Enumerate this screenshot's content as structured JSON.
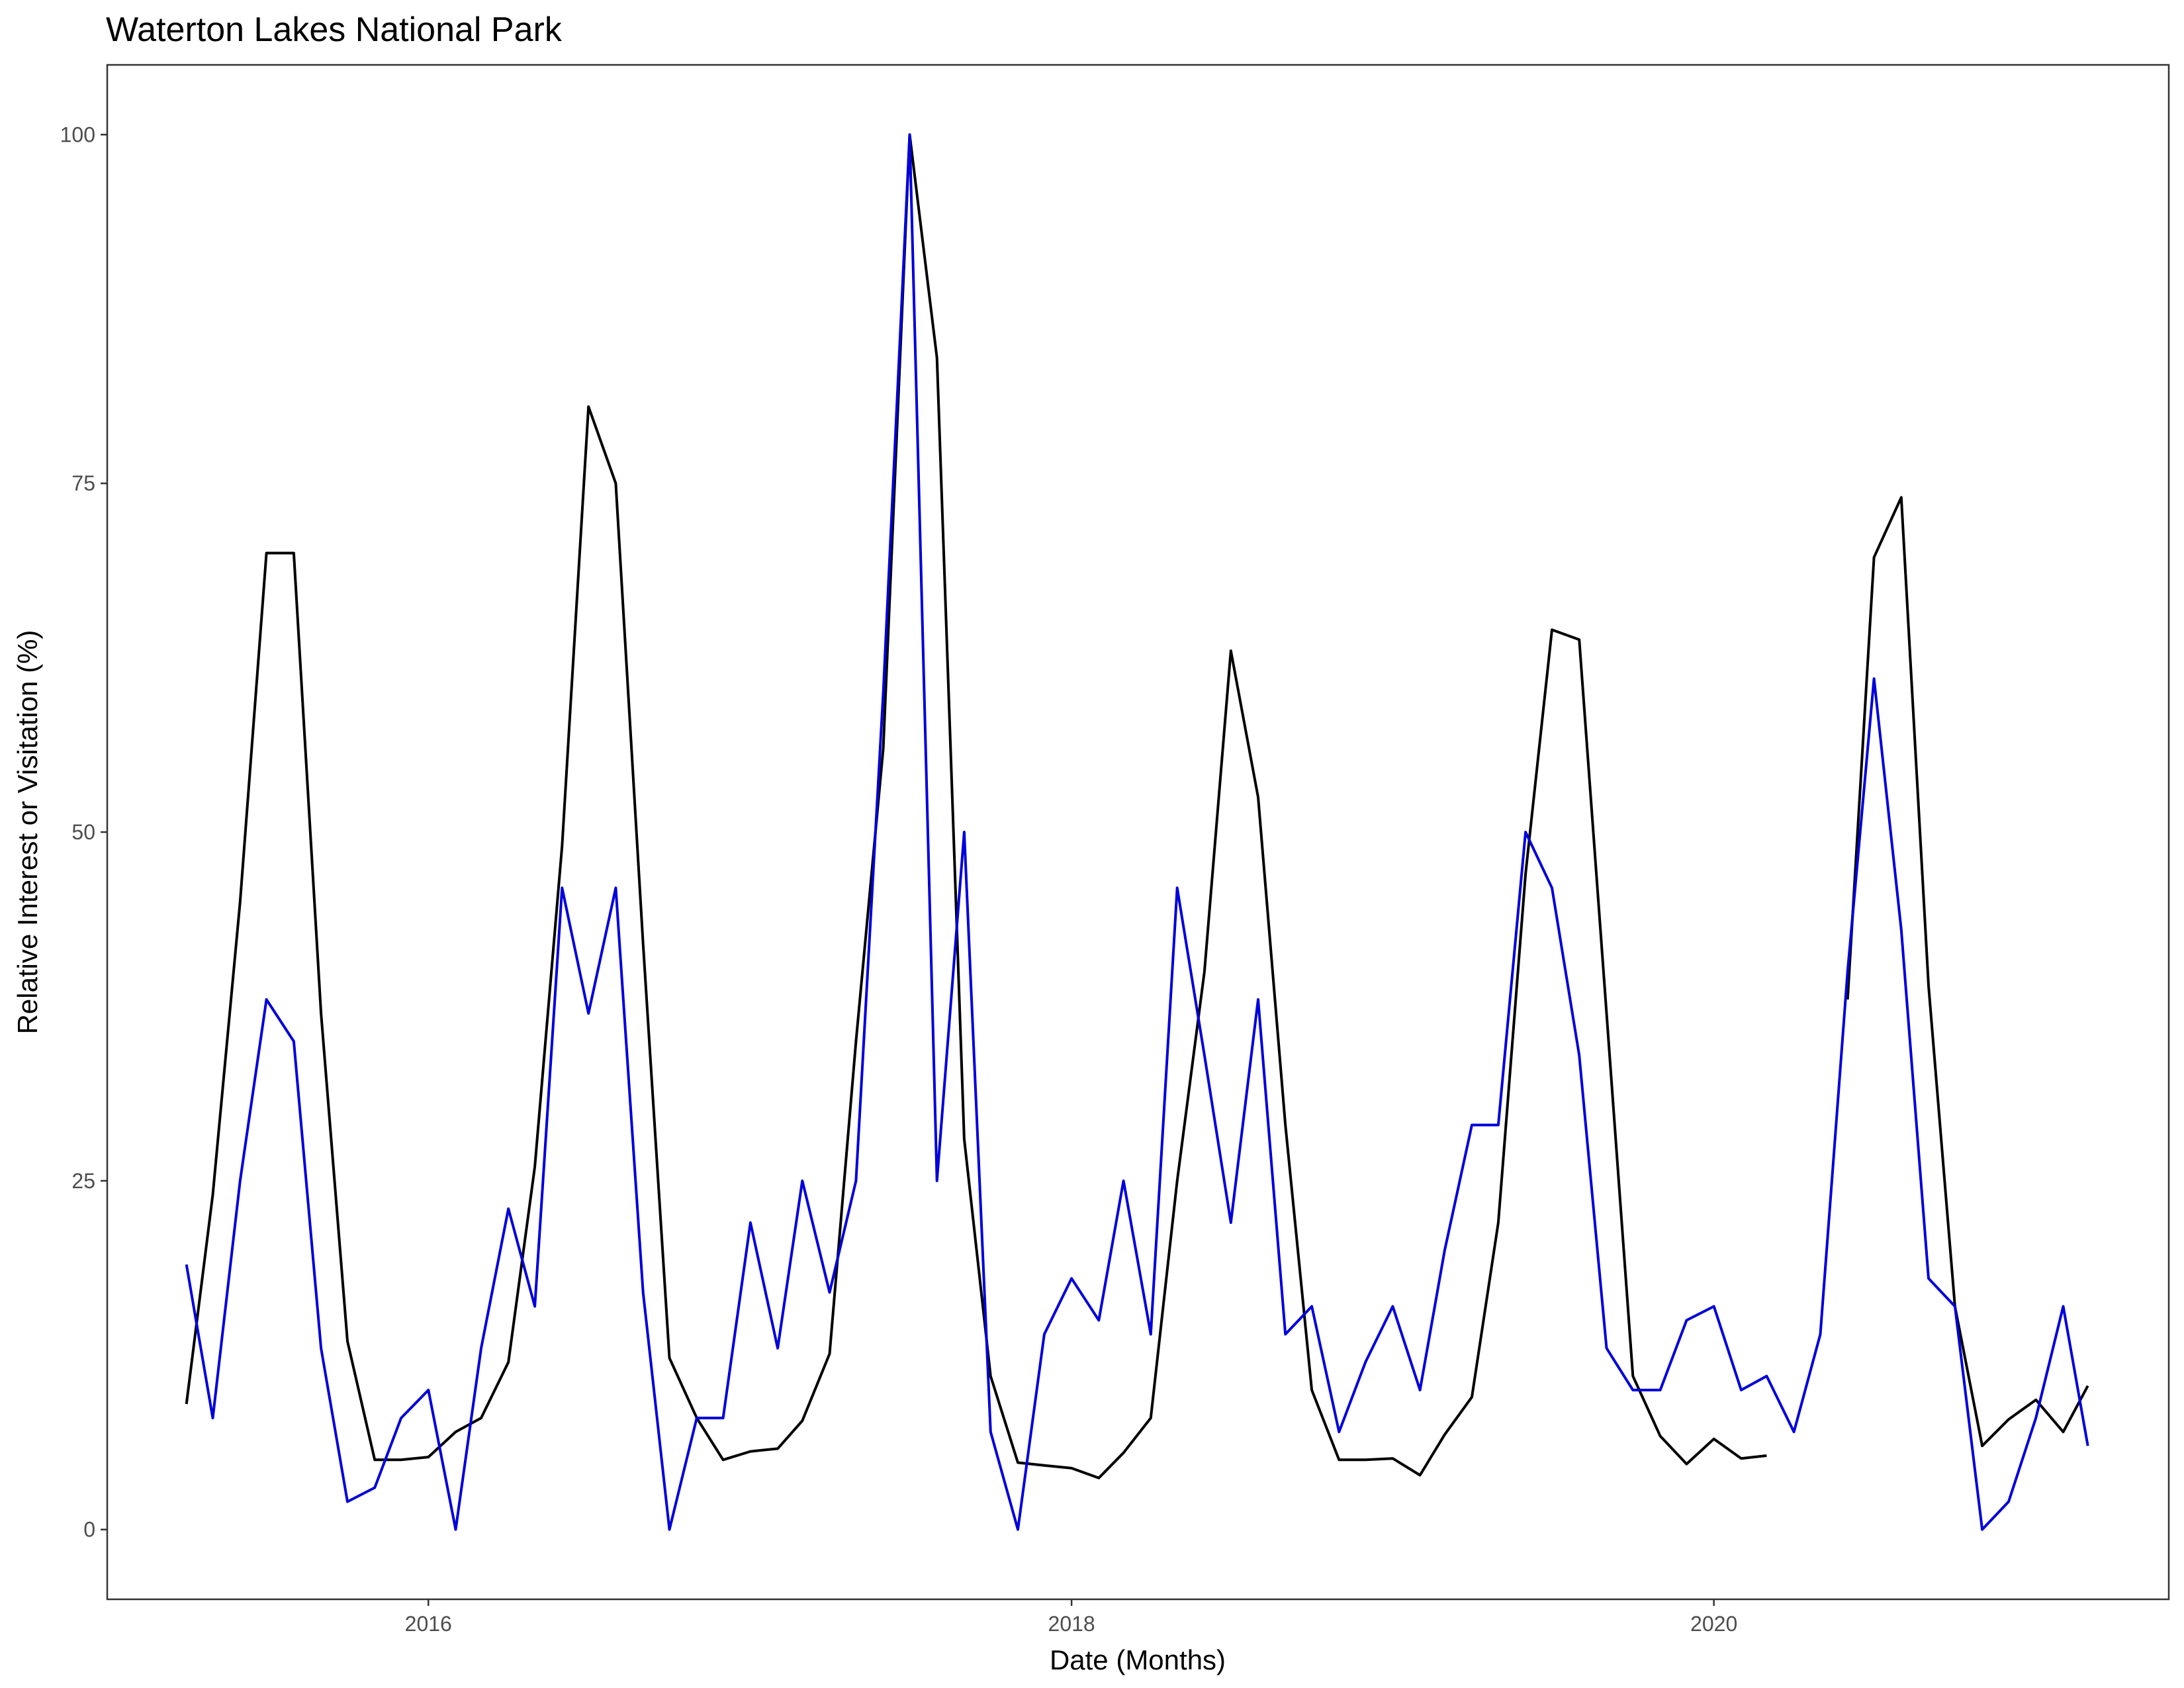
{
  "chart_data": {
    "type": "line",
    "title": "Waterton Lakes National Park",
    "xlabel": "Date (Months)",
    "ylabel": "Relative Interest or Visitation (%)",
    "xlim": [
      "2015-01-01",
      "2021-06-01"
    ],
    "ylim": [
      -5,
      105
    ],
    "x_ticks": [
      {
        "date": "2016-01-01",
        "label": "2016"
      },
      {
        "date": "2018-01-01",
        "label": "2018"
      },
      {
        "date": "2020-01-01",
        "label": "2020"
      }
    ],
    "y_ticks": [
      0,
      25,
      50,
      75,
      100
    ],
    "grid": false,
    "legend": "none",
    "series": [
      {
        "color": "#000000",
        "points": [
          [
            "2015-04-01",
            9
          ],
          [
            "2015-05-01",
            24
          ],
          [
            "2015-06-01",
            45
          ],
          [
            "2015-07-01",
            70
          ],
          [
            "2015-08-01",
            70
          ],
          [
            "2015-09-01",
            37
          ],
          [
            "2015-10-01",
            13.5
          ],
          [
            "2015-11-01",
            5
          ],
          [
            "2015-12-01",
            5
          ],
          [
            "2016-01-01",
            5.2
          ],
          [
            "2016-02-01",
            7
          ],
          [
            "2016-03-01",
            8
          ],
          [
            "2016-04-01",
            12
          ],
          [
            "2016-05-01",
            26
          ],
          [
            "2016-06-01",
            49
          ],
          [
            "2016-07-01",
            80.5
          ],
          [
            "2016-08-01",
            75
          ],
          [
            "2016-09-01",
            42
          ],
          [
            "2016-10-01",
            12.3
          ],
          [
            "2016-11-01",
            8
          ],
          [
            "2016-12-01",
            5
          ],
          [
            "2017-01-01",
            5.6
          ],
          [
            "2017-02-01",
            5.8
          ],
          [
            "2017-03-01",
            7.8
          ],
          [
            "2017-04-01",
            12.6
          ],
          [
            "2017-05-01",
            35
          ],
          [
            "2017-06-01",
            56
          ],
          [
            "2017-07-01",
            100
          ],
          [
            "2017-08-01",
            84
          ],
          [
            "2017-09-01",
            28
          ],
          [
            "2017-10-01",
            11
          ],
          [
            "2017-11-01",
            4.8
          ],
          [
            "2017-12-01",
            4.6
          ],
          [
            "2018-01-01",
            4.4
          ],
          [
            "2018-02-01",
            3.7
          ],
          [
            "2018-03-01",
            5.5
          ],
          [
            "2018-04-01",
            8
          ],
          [
            "2018-05-01",
            25
          ],
          [
            "2018-06-01",
            40
          ],
          [
            "2018-07-01",
            63
          ],
          [
            "2018-08-01",
            52.5
          ],
          [
            "2018-09-01",
            29
          ],
          [
            "2018-10-01",
            10
          ],
          [
            "2018-11-01",
            5
          ],
          [
            "2018-12-01",
            5
          ],
          [
            "2019-01-01",
            5.1
          ],
          [
            "2019-02-01",
            3.9
          ],
          [
            "2019-03-01",
            6.8
          ],
          [
            "2019-04-01",
            9.5
          ],
          [
            "2019-05-01",
            22
          ],
          [
            "2019-06-01",
            47
          ],
          [
            "2019-07-01",
            64.5
          ],
          [
            "2019-08-01",
            63.8
          ],
          [
            "2019-09-01",
            37
          ],
          [
            "2019-10-01",
            11
          ],
          [
            "2019-11-01",
            6.7
          ],
          [
            "2019-12-01",
            4.7
          ],
          [
            "2020-01-01",
            6.5
          ],
          [
            "2020-02-01",
            5.1
          ],
          [
            "2020-03-01",
            5.3
          ]
        ]
      },
      {
        "color": "#000000",
        "points": [
          [
            "2020-06-01",
            38
          ],
          [
            "2020-07-01",
            69.7
          ],
          [
            "2020-08-01",
            74
          ],
          [
            "2020-09-01",
            39
          ],
          [
            "2020-10-01",
            16
          ],
          [
            "2020-11-01",
            6
          ],
          [
            "2020-12-01",
            7.9
          ],
          [
            "2021-01-01",
            9.3
          ],
          [
            "2021-02-01",
            7
          ],
          [
            "2021-03-01",
            10.3
          ]
        ]
      },
      {
        "color": "#0000dd",
        "points": [
          [
            "2015-04-01",
            19
          ],
          [
            "2015-05-01",
            8
          ],
          [
            "2015-06-01",
            25
          ],
          [
            "2015-07-01",
            38
          ],
          [
            "2015-08-01",
            35
          ],
          [
            "2015-09-01",
            13
          ],
          [
            "2015-10-01",
            2
          ],
          [
            "2015-11-01",
            3
          ],
          [
            "2015-12-01",
            8
          ],
          [
            "2016-01-01",
            10
          ],
          [
            "2016-02-01",
            0
          ],
          [
            "2016-03-01",
            13
          ],
          [
            "2016-04-01",
            23
          ],
          [
            "2016-05-01",
            16
          ],
          [
            "2016-06-01",
            46
          ],
          [
            "2016-07-01",
            37
          ],
          [
            "2016-08-01",
            46
          ],
          [
            "2016-09-01",
            17
          ],
          [
            "2016-10-01",
            0
          ],
          [
            "2016-11-01",
            8
          ],
          [
            "2016-12-01",
            8
          ],
          [
            "2017-01-01",
            22
          ],
          [
            "2017-02-01",
            13
          ],
          [
            "2017-03-01",
            25
          ],
          [
            "2017-04-01",
            17
          ],
          [
            "2017-05-01",
            25
          ],
          [
            "2017-06-01",
            60
          ],
          [
            "2017-07-01",
            100
          ],
          [
            "2017-08-01",
            25
          ],
          [
            "2017-09-01",
            50
          ],
          [
            "2017-10-01",
            7
          ],
          [
            "2017-11-01",
            0
          ],
          [
            "2017-12-01",
            14
          ],
          [
            "2018-01-01",
            18
          ],
          [
            "2018-02-01",
            15
          ],
          [
            "2018-03-01",
            25
          ],
          [
            "2018-04-01",
            14
          ],
          [
            "2018-05-01",
            46
          ],
          [
            "2018-06-01",
            34
          ],
          [
            "2018-07-01",
            22
          ],
          [
            "2018-08-01",
            38
          ],
          [
            "2018-09-01",
            14
          ],
          [
            "2018-10-01",
            16
          ],
          [
            "2018-11-01",
            7
          ],
          [
            "2018-12-01",
            12
          ],
          [
            "2019-01-01",
            16
          ],
          [
            "2019-02-01",
            10
          ],
          [
            "2019-03-01",
            20
          ],
          [
            "2019-04-01",
            29
          ],
          [
            "2019-05-01",
            29
          ],
          [
            "2019-06-01",
            50
          ],
          [
            "2019-07-01",
            46
          ],
          [
            "2019-08-01",
            34
          ],
          [
            "2019-09-01",
            13
          ],
          [
            "2019-10-01",
            10
          ],
          [
            "2019-11-01",
            10
          ],
          [
            "2019-12-01",
            15
          ],
          [
            "2020-01-01",
            16
          ],
          [
            "2020-02-01",
            10
          ],
          [
            "2020-03-01",
            11
          ],
          [
            "2020-04-01",
            7
          ],
          [
            "2020-05-01",
            14
          ],
          [
            "2020-06-01",
            40
          ],
          [
            "2020-07-01",
            61
          ],
          [
            "2020-08-01",
            43
          ],
          [
            "2020-09-01",
            18
          ],
          [
            "2020-10-01",
            16
          ],
          [
            "2020-11-01",
            0
          ],
          [
            "2020-12-01",
            2
          ],
          [
            "2021-01-01",
            8
          ],
          [
            "2021-02-01",
            16
          ],
          [
            "2021-03-01",
            6
          ]
        ]
      }
    ]
  }
}
